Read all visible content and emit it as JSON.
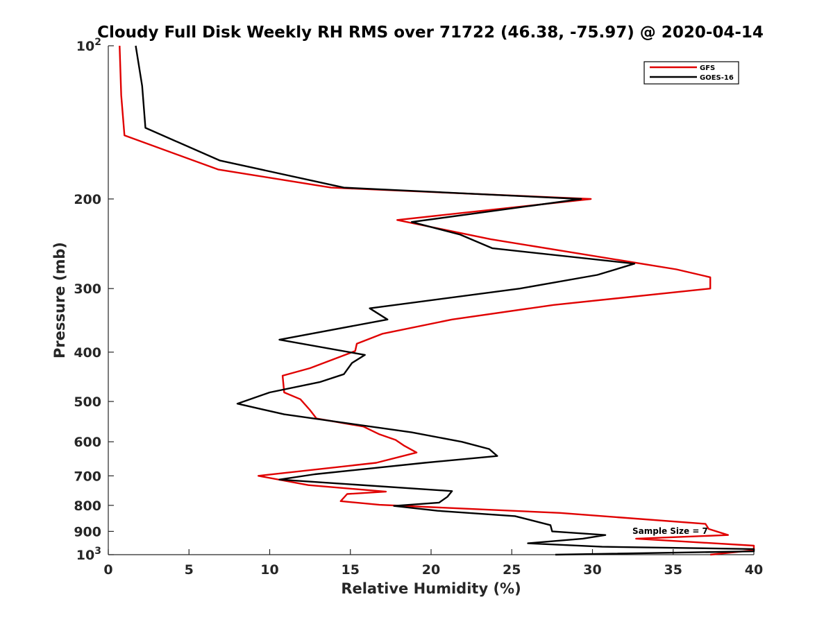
{
  "chart_data": {
    "type": "line",
    "title": "Cloudy Full Disk Weekly RH RMS over 71722 (46.38, -75.97) @ 2020-04-14",
    "xlabel": "Relative Humidity (%)",
    "ylabel": "Pressure (mb)",
    "xlim": [
      0,
      40
    ],
    "ylim": [
      100,
      1000
    ],
    "y_scale": "log",
    "y_reversed": true,
    "x_ticks": [
      "0",
      "5",
      "10",
      "15",
      "20",
      "25",
      "30",
      "35",
      "40"
    ],
    "x_tick_values": [
      0,
      5,
      10,
      15,
      20,
      25,
      30,
      35,
      40
    ],
    "y_ticks": [
      {
        "value": 100,
        "base": "10",
        "exp": "2"
      },
      {
        "value": 200,
        "label": "200"
      },
      {
        "value": 300,
        "label": "300"
      },
      {
        "value": 400,
        "label": "400"
      },
      {
        "value": 500,
        "label": "500"
      },
      {
        "value": 600,
        "label": "600"
      },
      {
        "value": 700,
        "label": "700"
      },
      {
        "value": 800,
        "label": "800"
      },
      {
        "value": 900,
        "label": "900"
      },
      {
        "value": 1000,
        "base": "10",
        "exp": "3"
      }
    ],
    "legend_position": "top-right",
    "annotation": "Sample Size = 7",
    "series": [
      {
        "name": "GFS",
        "color": "#e00000",
        "points": [
          [
            0.7,
            100
          ],
          [
            0.8,
            125
          ],
          [
            1.0,
            150
          ],
          [
            6.8,
            175
          ],
          [
            13.8,
            190
          ],
          [
            29.9,
            200
          ],
          [
            17.9,
            220
          ],
          [
            23.7,
            240
          ],
          [
            35.2,
            275
          ],
          [
            37.3,
            285
          ],
          [
            37.3,
            300
          ],
          [
            27.6,
            323
          ],
          [
            21.3,
            345
          ],
          [
            17.0,
            368
          ],
          [
            15.4,
            385
          ],
          [
            15.3,
            398
          ],
          [
            12.5,
            430
          ],
          [
            10.8,
            445
          ],
          [
            10.9,
            480
          ],
          [
            11.9,
            495
          ],
          [
            12.5,
            520
          ],
          [
            12.9,
            540
          ],
          [
            15.8,
            560
          ],
          [
            16.8,
            580
          ],
          [
            17.8,
            595
          ],
          [
            18.3,
            610
          ],
          [
            19.1,
            630
          ],
          [
            16.6,
            660
          ],
          [
            9.3,
            700
          ],
          [
            12.4,
            730
          ],
          [
            17.2,
            752
          ],
          [
            14.8,
            760
          ],
          [
            14.4,
            785
          ],
          [
            16.8,
            798
          ],
          [
            28.0,
            828
          ],
          [
            37.0,
            870
          ],
          [
            37.2,
            890
          ],
          [
            38.4,
            915
          ],
          [
            32.7,
            930
          ],
          [
            40.0,
            960
          ],
          [
            40.0,
            980
          ],
          [
            37.3,
            1000
          ]
        ]
      },
      {
        "name": "GOES-16",
        "color": "#000000",
        "points": [
          [
            1.7,
            100
          ],
          [
            2.1,
            120
          ],
          [
            2.3,
            145
          ],
          [
            6.9,
            168
          ],
          [
            14.6,
            190
          ],
          [
            29.3,
            200
          ],
          [
            18.8,
            222
          ],
          [
            21.8,
            235
          ],
          [
            23.8,
            250
          ],
          [
            32.6,
            268
          ],
          [
            30.3,
            282
          ],
          [
            25.5,
            300
          ],
          [
            16.2,
            328
          ],
          [
            17.3,
            345
          ],
          [
            10.6,
            378
          ],
          [
            15.9,
            405
          ],
          [
            15.1,
            420
          ],
          [
            14.6,
            442
          ],
          [
            13.1,
            458
          ],
          [
            10.0,
            480
          ],
          [
            8.0,
            505
          ],
          [
            10.9,
            530
          ],
          [
            18.8,
            575
          ],
          [
            21.9,
            600
          ],
          [
            23.6,
            620
          ],
          [
            24.1,
            640
          ],
          [
            19.6,
            660
          ],
          [
            12.8,
            695
          ],
          [
            10.6,
            712
          ],
          [
            21.3,
            750
          ],
          [
            21.0,
            770
          ],
          [
            20.5,
            790
          ],
          [
            17.7,
            802
          ],
          [
            20.4,
            820
          ],
          [
            25.2,
            840
          ],
          [
            27.4,
            875
          ],
          [
            27.5,
            900
          ],
          [
            30.8,
            915
          ],
          [
            29.4,
            930
          ],
          [
            26.0,
            950
          ],
          [
            30.6,
            965
          ],
          [
            40.0,
            975
          ],
          [
            40.0,
            985
          ],
          [
            27.7,
            1000
          ]
        ]
      }
    ]
  }
}
